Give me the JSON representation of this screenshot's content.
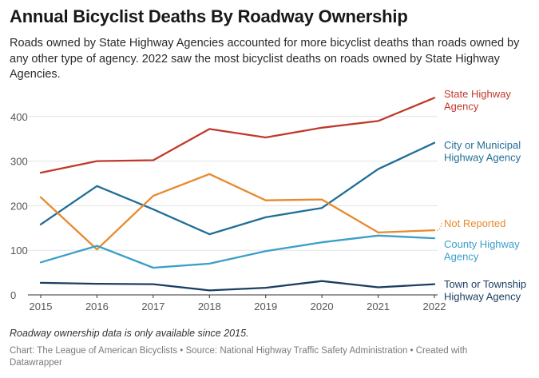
{
  "header": {
    "title": "Annual Bicyclist Deaths By Roadway Ownership",
    "subtitle": "Roads owned by State Highway Agencies accounted for more bicyclist deaths than roads owned by any other type of agency. 2022 saw the most bicyclist deaths on roads owned by State Highway Agencies."
  },
  "notes": {
    "italic_note": "Roadway ownership data is only available since 2015.",
    "footer": "Chart: The League of American Bicyclists • Source: National Highway Traffic Safety Administration • Created with Datawrapper"
  },
  "chart_data": {
    "type": "line",
    "title": "Annual Bicyclist Deaths By Roadway Ownership",
    "xlabel": "",
    "ylabel": "",
    "x": [
      2015,
      2016,
      2017,
      2018,
      2019,
      2020,
      2021,
      2022
    ],
    "x_tick_labels": [
      "2015",
      "2016",
      "2017",
      "2018",
      "2019",
      "2020",
      "2021",
      "2022"
    ],
    "y_ticks": [
      0,
      100,
      200,
      300,
      400
    ],
    "y_tick_labels": [
      "0",
      "100",
      "200",
      "300",
      "400"
    ],
    "ylim": [
      0,
      450
    ],
    "grid": true,
    "series": [
      {
        "name": "State Highway Agency",
        "label_lines": [
          "State Highway",
          "Agency"
        ],
        "color": "#c0392b",
        "values": [
          274,
          300,
          302,
          372,
          353,
          375,
          390,
          442
        ]
      },
      {
        "name": "City or Municipal Highway Agency",
        "label_lines": [
          "City or Municipal",
          "Highway Agency"
        ],
        "color": "#1f6e97",
        "values": [
          158,
          244,
          192,
          136,
          174,
          195,
          282,
          341
        ]
      },
      {
        "name": "Not Reported",
        "label_lines": [
          "Not Reported"
        ],
        "color": "#e8892d",
        "values": [
          219,
          102,
          222,
          271,
          212,
          214,
          140,
          145
        ]
      },
      {
        "name": "County Highway Agency",
        "label_lines": [
          "County Highway",
          "Agency"
        ],
        "color": "#3a9fc9",
        "values": [
          73,
          110,
          61,
          70,
          98,
          118,
          133,
          127
        ]
      },
      {
        "name": "Town or Township Highway Agency",
        "label_lines": [
          "Town or Township",
          "Highway Agency"
        ],
        "color": "#1b3f63",
        "values": [
          27,
          25,
          24,
          10,
          16,
          31,
          17,
          24
        ]
      }
    ]
  }
}
